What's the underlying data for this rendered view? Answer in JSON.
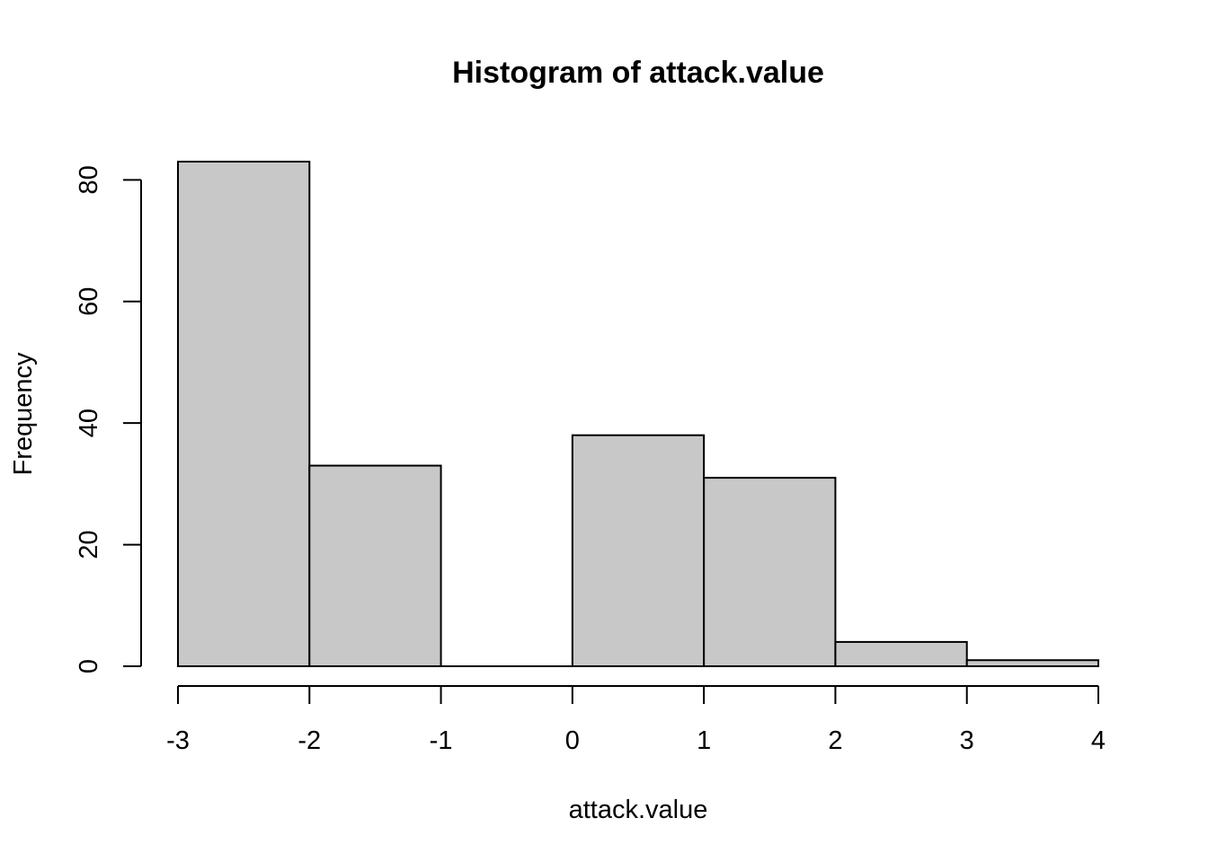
{
  "chart_data": {
    "type": "bar",
    "title": "Histogram of attack.value",
    "xlabel": "attack.value",
    "ylabel": "Frequency",
    "bins": [
      {
        "start": -3,
        "end": -2,
        "count": 83
      },
      {
        "start": -2,
        "end": -1,
        "count": 33
      },
      {
        "start": -1,
        "end": 0,
        "count": 0
      },
      {
        "start": 0,
        "end": 1,
        "count": 38
      },
      {
        "start": 1,
        "end": 2,
        "count": 31
      },
      {
        "start": 2,
        "end": 3,
        "count": 4
      },
      {
        "start": 3,
        "end": 4,
        "count": 1
      }
    ],
    "xlim": [
      -3,
      4
    ],
    "ylim": [
      0,
      83
    ],
    "xticks": [
      -3,
      -2,
      -1,
      0,
      1,
      2,
      3,
      4
    ],
    "yticks": [
      0,
      20,
      40,
      60,
      80
    ],
    "bar_fill": "#c8c8c8",
    "bar_stroke": "#000000",
    "grid": false
  }
}
